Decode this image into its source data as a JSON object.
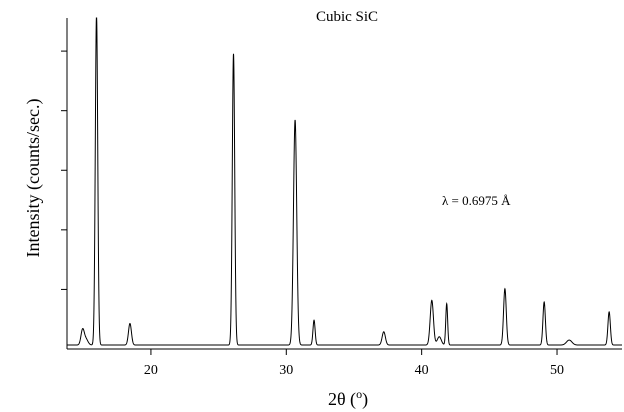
{
  "chart_data": {
    "type": "line",
    "title": "Cubic SiC",
    "xlabel": "2θ (",
    "xlabel_sup": "o",
    "xlabel_close": ")",
    "ylabel": "Intensity (counts/sec.)",
    "annotation": "λ = 0.6975 Å",
    "xlim": [
      13.8,
      54.8
    ],
    "ylim": [
      0,
      100
    ],
    "x_ticks": [
      20,
      30,
      40,
      50
    ],
    "x_tick_labels": [
      "20",
      "30",
      "40",
      "50"
    ],
    "y_ticks": [
      18,
      36,
      54,
      72,
      90
    ],
    "grid": false,
    "legend": "none",
    "line_color": "#000000",
    "baseline": 1.2,
    "peaks": [
      {
        "x": 14.95,
        "height": 4.5,
        "width": 0.12
      },
      {
        "x": 15.2,
        "height": 1.8,
        "width": 0.15
      },
      {
        "x": 15.98,
        "height": 100,
        "width": 0.09
      },
      {
        "x": 18.45,
        "height": 6.5,
        "width": 0.11
      },
      {
        "x": 26.1,
        "height": 88,
        "width": 0.09
      },
      {
        "x": 30.65,
        "height": 68,
        "width": 0.12
      },
      {
        "x": 32.05,
        "height": 7.5,
        "width": 0.08
      },
      {
        "x": 37.2,
        "height": 4,
        "width": 0.12
      },
      {
        "x": 40.75,
        "height": 13.5,
        "width": 0.12
      },
      {
        "x": 41.3,
        "height": 2.5,
        "width": 0.15
      },
      {
        "x": 41.85,
        "height": 12.5,
        "width": 0.07
      },
      {
        "x": 46.15,
        "height": 17,
        "width": 0.1
      },
      {
        "x": 49.05,
        "height": 13,
        "width": 0.09
      },
      {
        "x": 50.9,
        "height": 1.5,
        "width": 0.2
      },
      {
        "x": 53.85,
        "height": 10,
        "width": 0.09
      }
    ]
  }
}
